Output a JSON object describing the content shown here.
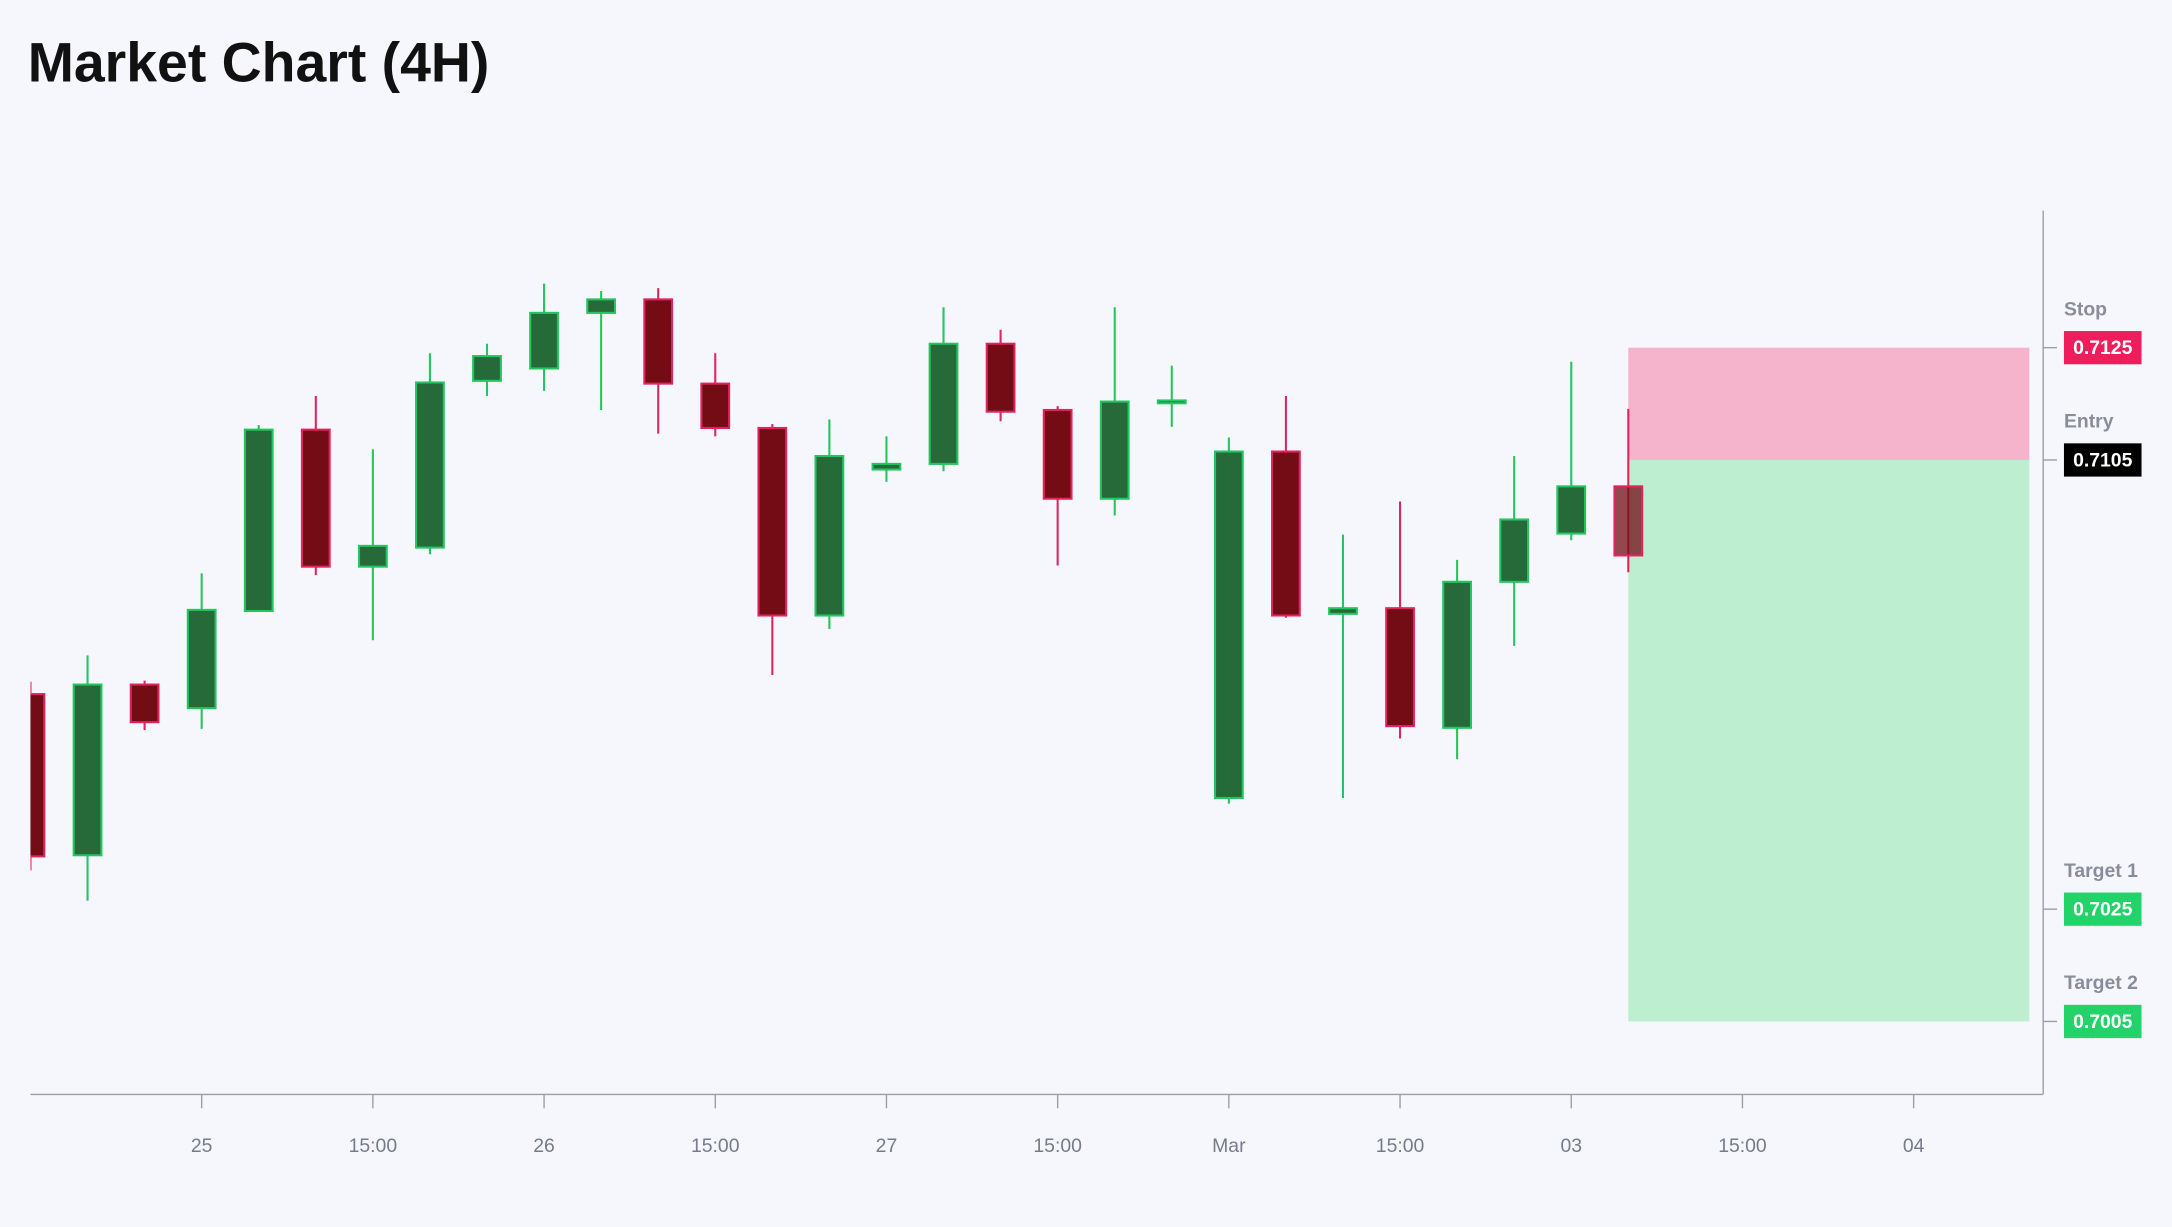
{
  "chart_data": {
    "type": "candlestick",
    "title": "Market Chart (4H)",
    "x": [
      0,
      1,
      2,
      3,
      4,
      5,
      6,
      7,
      8,
      9,
      10,
      11,
      12,
      13,
      14,
      15,
      16,
      17,
      18,
      19,
      20,
      21,
      22,
      23,
      24,
      25,
      26,
      27,
      28
    ],
    "open": [
      0.70633,
      0.70346,
      0.7065,
      0.70608,
      0.70781,
      0.71104,
      0.7086,
      0.70894,
      0.71191,
      0.71213,
      0.71312,
      0.71336,
      0.71186,
      0.71107,
      0.70773,
      0.71033,
      0.71043,
      0.71257,
      0.71139,
      0.70981,
      0.71151,
      0.70448,
      0.71065,
      0.70776,
      0.70786,
      0.70573,
      0.70833,
      0.70919,
      0.71003
    ],
    "high": [
      0.70655,
      0.70702,
      0.70657,
      0.70848,
      0.71112,
      0.71164,
      0.71069,
      0.7124,
      0.71257,
      0.71364,
      0.71351,
      0.71356,
      0.7124,
      0.71114,
      0.71122,
      0.71092,
      0.71322,
      0.71282,
      0.71146,
      0.71322,
      0.71218,
      0.7109,
      0.71164,
      0.70917,
      0.70976,
      0.70872,
      0.71057,
      0.71225,
      0.71141
    ],
    "low": [
      0.70319,
      0.70265,
      0.70569,
      0.70571,
      0.70781,
      0.70845,
      0.70729,
      0.70882,
      0.71164,
      0.71173,
      0.71139,
      0.71097,
      0.71092,
      0.70667,
      0.70749,
      0.71011,
      0.7103,
      0.71119,
      0.70862,
      0.70951,
      0.71109,
      0.70438,
      0.70769,
      0.70448,
      0.70554,
      0.70517,
      0.70719,
      0.70907,
      0.7085
    ],
    "close": [
      0.70344,
      0.7065,
      0.70583,
      0.70783,
      0.71104,
      0.7086,
      0.70897,
      0.71188,
      0.71235,
      0.71312,
      0.71336,
      0.71186,
      0.71107,
      0.70773,
      0.71057,
      0.71043,
      0.71257,
      0.71136,
      0.70981,
      0.71154,
      0.71156,
      0.71065,
      0.70773,
      0.70786,
      0.70576,
      0.70833,
      0.70944,
      0.71003,
      0.7088
    ],
    "xlim": [
      0,
      35.27
    ],
    "xticks": [
      {
        "value": 3,
        "label": "25"
      },
      {
        "value": 6,
        "label": "15:00"
      },
      {
        "value": 9,
        "label": "26"
      },
      {
        "value": 12,
        "label": "15:00"
      },
      {
        "value": 15,
        "label": "27"
      },
      {
        "value": 18,
        "label": "15:00"
      },
      {
        "value": 21,
        "label": "Mar"
      },
      {
        "value": 24,
        "label": "15:00"
      },
      {
        "value": 27,
        "label": "03"
      },
      {
        "value": 30,
        "label": "15:00"
      },
      {
        "value": 33,
        "label": "04"
      }
    ],
    "ylim": [
      0.6992,
      0.71494
    ],
    "up_color": "#22c55e",
    "down_color": "#e0245e",
    "levels": [
      {
        "name": "Stop",
        "value": 0.7125,
        "color": "#ef1d5b"
      },
      {
        "name": "Entry",
        "value": 0.7105,
        "color": "#000000"
      },
      {
        "name": "Target 1",
        "value": 0.7025,
        "color": "#22d36a"
      },
      {
        "name": "Target 2",
        "value": 0.7005,
        "color": "#22d36a"
      }
    ]
  }
}
